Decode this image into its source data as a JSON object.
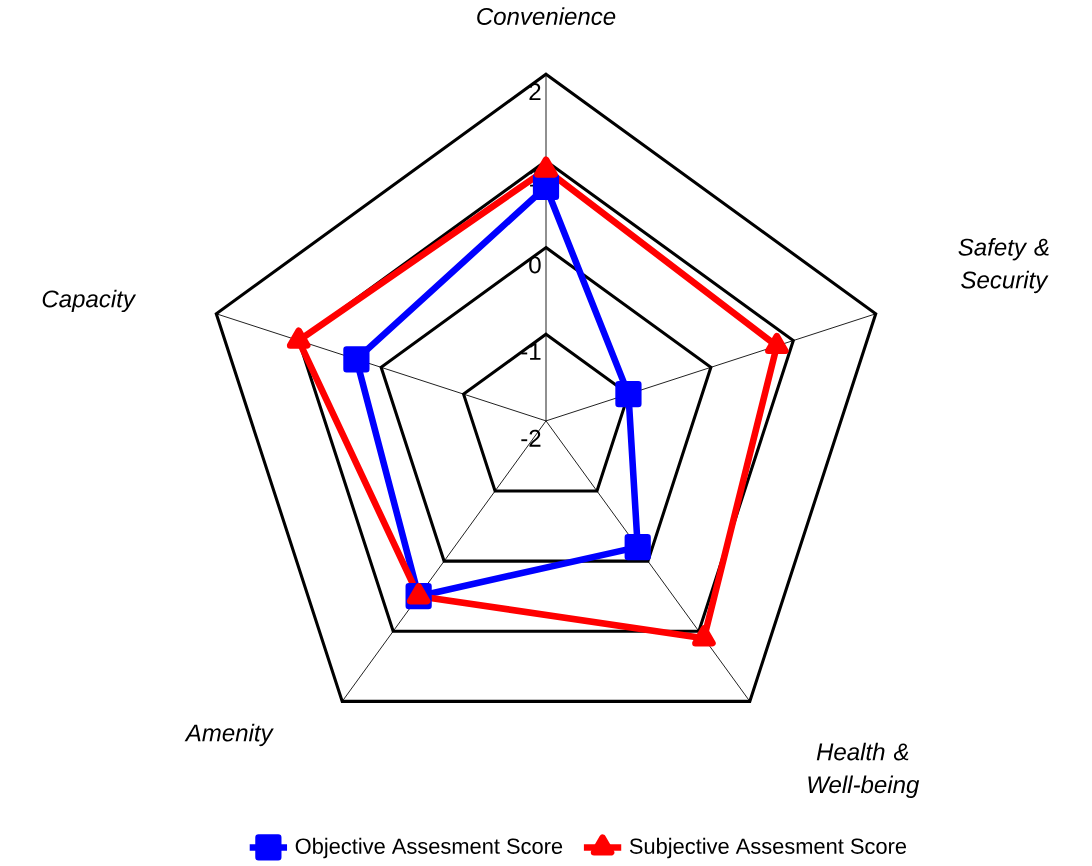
{
  "chart_data": {
    "type": "radar",
    "categories": [
      "Convenience",
      "Safety & Security",
      "Health & Well-being",
      "Amenity",
      "Capacity"
    ],
    "series": [
      {
        "name": "Objective Assesment Score",
        "color": "#0000ff",
        "marker": "square",
        "values": [
          0.7,
          -1,
          -0.2,
          0.5,
          0.3
        ]
      },
      {
        "name": "Subjective Assesment Score",
        "color": "#ff0000",
        "marker": "triangle",
        "values": [
          0.9,
          0.8,
          1.1,
          0.5,
          1.0
        ]
      }
    ],
    "ylim": [
      -2,
      2
    ],
    "yticks": [
      -2,
      -1,
      0,
      1,
      2
    ],
    "grid": true,
    "legend": "bottom",
    "line_style": "solid"
  }
}
